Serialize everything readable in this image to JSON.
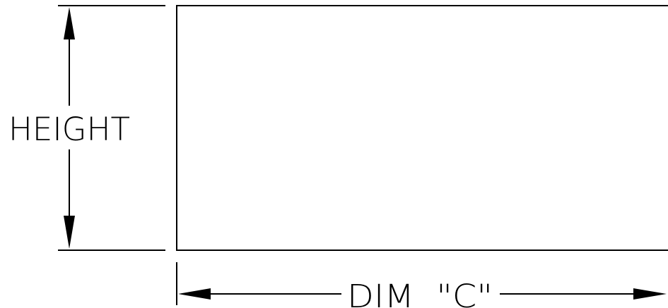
{
  "labels": {
    "height": "HEIGHT",
    "dim_c": "DIM  \"C\""
  },
  "colors": {
    "line": "#000000",
    "background": "#ffffff"
  }
}
